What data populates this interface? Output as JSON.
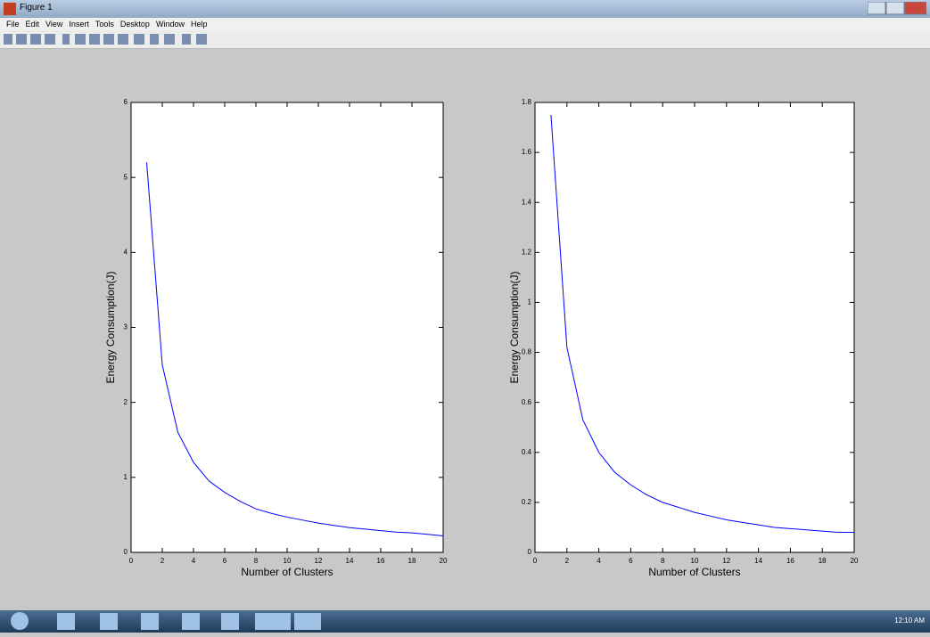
{
  "window": {
    "title": "Figure 1",
    "menu": [
      "File",
      "Edit",
      "View",
      "Insert",
      "Tools",
      "Desktop",
      "Window",
      "Help"
    ]
  },
  "taskbar": {
    "time": "12:10 AM"
  },
  "chart_data": [
    {
      "type": "line",
      "xlabel": "Number of Clusters",
      "ylabel": "Energy Consumption(J)",
      "x": [
        1,
        2,
        3,
        4,
        5,
        6,
        7,
        8,
        9,
        10,
        11,
        12,
        13,
        14,
        15,
        16,
        17,
        18,
        19,
        20
      ],
      "series": [
        {
          "color": "#0000ff",
          "values": [
            5.2,
            2.5,
            1.6,
            1.2,
            0.95,
            0.8,
            0.68,
            0.58,
            0.52,
            0.47,
            0.43,
            0.39,
            0.36,
            0.33,
            0.31,
            0.29,
            0.27,
            0.26,
            0.24,
            0.22
          ]
        }
      ],
      "xlim": [
        0,
        20
      ],
      "xticks": [
        0,
        2,
        4,
        6,
        8,
        10,
        12,
        14,
        16,
        18,
        20
      ],
      "ylim": [
        0,
        6
      ],
      "yticks": [
        0,
        1,
        2,
        3,
        4,
        5,
        6
      ]
    },
    {
      "type": "line",
      "xlabel": "Number of Clusters",
      "ylabel": "Energy Consumption(J)",
      "x": [
        1,
        2,
        3,
        4,
        5,
        6,
        7,
        8,
        9,
        10,
        11,
        12,
        13,
        14,
        15,
        16,
        17,
        18,
        19,
        20
      ],
      "series": [
        {
          "color": "#0000ff",
          "values": [
            1.75,
            0.82,
            0.53,
            0.4,
            0.32,
            0.27,
            0.23,
            0.2,
            0.18,
            0.16,
            0.145,
            0.13,
            0.12,
            0.11,
            0.1,
            0.095,
            0.09,
            0.085,
            0.08,
            0.08
          ]
        }
      ],
      "xlim": [
        0,
        20
      ],
      "xticks": [
        0,
        2,
        4,
        6,
        8,
        10,
        12,
        14,
        16,
        18,
        20
      ],
      "ylim": [
        0,
        1.8
      ],
      "yticks": [
        0,
        0.2,
        0.4,
        0.6,
        0.8,
        1,
        1.2,
        1.4,
        1.6,
        1.8
      ]
    }
  ]
}
